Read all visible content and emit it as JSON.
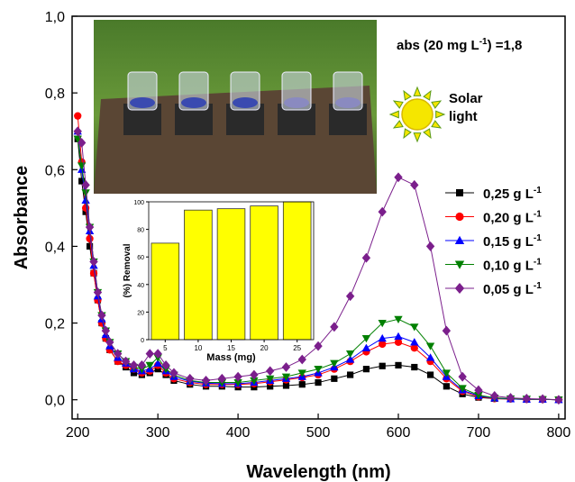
{
  "chart_data": [
    {
      "type": "line",
      "xlabel": "Wavelength (nm)",
      "ylabel": "Absorbance",
      "annotation": {
        "text": "abs (20 mg L",
        "sup": "-1",
        "tail": ") =1,8"
      },
      "sun_label": [
        "Solar",
        "light"
      ],
      "legend_superscript": "-1",
      "xlim": [
        193,
        808
      ],
      "ylim": [
        -0.05,
        1.0
      ],
      "xticks": [
        200,
        300,
        400,
        500,
        600,
        700,
        800
      ],
      "yticks": [
        {
          "value": 0,
          "label": "0,0"
        },
        {
          "value": 0.2,
          "label": "0,2"
        },
        {
          "value": 0.4,
          "label": "0,4"
        },
        {
          "value": 0.6,
          "label": "0,6"
        },
        {
          "value": 0.8,
          "label": "0,8"
        },
        {
          "value": 1.0,
          "label": "1,0"
        }
      ],
      "x": [
        200,
        205,
        210,
        215,
        220,
        225,
        230,
        235,
        240,
        250,
        260,
        270,
        280,
        290,
        300,
        310,
        320,
        340,
        360,
        380,
        400,
        420,
        440,
        460,
        480,
        500,
        520,
        540,
        560,
        580,
        600,
        620,
        640,
        660,
        680,
        700,
        720,
        740,
        760,
        780,
        800
      ],
      "series": [
        {
          "name": "0,25 g L",
          "color": "#000000",
          "marker": "square",
          "values": [
            0.68,
            0.57,
            0.49,
            0.4,
            0.33,
            0.26,
            0.2,
            0.16,
            0.13,
            0.1,
            0.085,
            0.07,
            0.065,
            0.07,
            0.08,
            0.065,
            0.05,
            0.04,
            0.035,
            0.035,
            0.033,
            0.033,
            0.035,
            0.037,
            0.04,
            0.045,
            0.055,
            0.065,
            0.08,
            0.088,
            0.09,
            0.085,
            0.065,
            0.035,
            0.015,
            0.006,
            0.003,
            0.002,
            0.001,
            0.001,
            0
          ]
        },
        {
          "name": "0,20 g L",
          "color": "#ff0000",
          "marker": "circle",
          "values": [
            0.74,
            0.62,
            0.5,
            0.42,
            0.33,
            0.26,
            0.2,
            0.16,
            0.13,
            0.1,
            0.09,
            0.08,
            0.07,
            0.075,
            0.09,
            0.07,
            0.055,
            0.045,
            0.04,
            0.04,
            0.04,
            0.042,
            0.047,
            0.052,
            0.058,
            0.065,
            0.08,
            0.1,
            0.125,
            0.145,
            0.15,
            0.135,
            0.1,
            0.055,
            0.022,
            0.008,
            0.003,
            0.002,
            0.001,
            0.001,
            0
          ]
        },
        {
          "name": "0,15 g L",
          "color": "#0000ff",
          "marker": "triangle-up",
          "values": [
            0.7,
            0.6,
            0.52,
            0.44,
            0.35,
            0.27,
            0.21,
            0.17,
            0.14,
            0.11,
            0.095,
            0.08,
            0.075,
            0.08,
            0.095,
            0.075,
            0.06,
            0.048,
            0.043,
            0.042,
            0.042,
            0.045,
            0.05,
            0.055,
            0.06,
            0.07,
            0.085,
            0.105,
            0.135,
            0.16,
            0.165,
            0.15,
            0.11,
            0.06,
            0.025,
            0.01,
            0.004,
            0.002,
            0.001,
            0.001,
            0
          ]
        },
        {
          "name": "0,10 g L",
          "color": "#008000",
          "marker": "triangle-down",
          "values": [
            0.68,
            0.61,
            0.54,
            0.45,
            0.36,
            0.28,
            0.22,
            0.18,
            0.15,
            0.12,
            0.1,
            0.085,
            0.08,
            0.09,
            0.11,
            0.08,
            0.065,
            0.05,
            0.045,
            0.045,
            0.045,
            0.05,
            0.055,
            0.06,
            0.07,
            0.08,
            0.095,
            0.12,
            0.16,
            0.2,
            0.21,
            0.19,
            0.14,
            0.07,
            0.03,
            0.012,
            0.005,
            0.003,
            0.002,
            0.001,
            0
          ]
        },
        {
          "name": "0,05 g L",
          "color": "#7b1f8c",
          "marker": "diamond",
          "values": [
            0.7,
            0.67,
            0.56,
            0.45,
            0.36,
            0.28,
            0.22,
            0.18,
            0.15,
            0.12,
            0.1,
            0.09,
            0.09,
            0.12,
            0.12,
            0.09,
            0.07,
            0.055,
            0.05,
            0.055,
            0.06,
            0.065,
            0.075,
            0.085,
            0.105,
            0.14,
            0.19,
            0.27,
            0.37,
            0.49,
            0.58,
            0.56,
            0.4,
            0.18,
            0.06,
            0.025,
            0.01,
            0.005,
            0.003,
            0.002,
            0
          ]
        }
      ]
    },
    {
      "type": "bar",
      "xlabel": "Mass (mg)",
      "ylabel": "(%) Removal",
      "categories": [
        "5",
        "10",
        "15",
        "20",
        "25"
      ],
      "values": [
        70,
        94,
        95,
        97,
        100
      ],
      "color": "#ffff00",
      "ylim": [
        0,
        100
      ],
      "yticks": [
        0,
        20,
        40,
        60,
        80,
        100
      ]
    }
  ]
}
